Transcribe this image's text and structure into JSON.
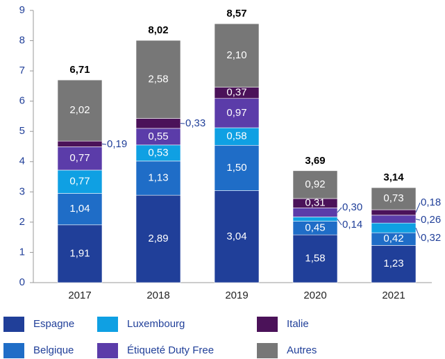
{
  "chart_data": {
    "type": "stacked_bar",
    "categories": [
      "2017",
      "2018",
      "2019",
      "2020",
      "2021"
    ],
    "series": [
      {
        "name": "Espagne",
        "color": "#203f99",
        "values": [
          1.91,
          2.89,
          3.04,
          1.58,
          1.23
        ],
        "value_labels": [
          "1,91",
          "2,89",
          "3,04",
          "1,58",
          "1,23"
        ]
      },
      {
        "name": "Belgique",
        "color": "#1f6dc7",
        "values": [
          1.04,
          1.13,
          1.5,
          0.45,
          0.42
        ],
        "value_labels": [
          "1,04",
          "1,13",
          "1,50",
          "0,45",
          "0,42"
        ]
      },
      {
        "name": "Luxembourg",
        "color": "#0fa0e3",
        "values": [
          0.77,
          0.53,
          0.58,
          0.14,
          0.32
        ],
        "value_labels": [
          "0,77",
          "0,53",
          "0,58",
          "0,14",
          "0,32"
        ]
      },
      {
        "name": "Étiqueté Duty Free",
        "color": "#5b3ca9",
        "values": [
          0.77,
          0.55,
          0.97,
          0.3,
          0.26
        ],
        "value_labels": [
          "0,77",
          "0,55",
          "0,97",
          "0,30",
          "0,26"
        ]
      },
      {
        "name": "Italie",
        "color": "#4b1259",
        "values": [
          0.19,
          0.33,
          0.37,
          0.31,
          0.18
        ],
        "value_labels": [
          "0,19",
          "0,33",
          "0,37",
          "0,31",
          "0,18"
        ]
      },
      {
        "name": "Autres",
        "color": "#777777",
        "values": [
          2.02,
          2.58,
          2.1,
          0.92,
          0.73
        ],
        "value_labels": [
          "2,02",
          "2,58",
          "2,10",
          "0,92",
          "0,73"
        ]
      }
    ],
    "totals": [
      6.71,
      8.02,
      8.57,
      3.69,
      3.14
    ],
    "total_labels": [
      "6,71",
      "8,02",
      "8,57",
      "3,69",
      "3,14"
    ],
    "ylim": [
      0,
      9
    ],
    "yticks": [
      0,
      1,
      2,
      3,
      4,
      5,
      6,
      7,
      8,
      9
    ]
  }
}
